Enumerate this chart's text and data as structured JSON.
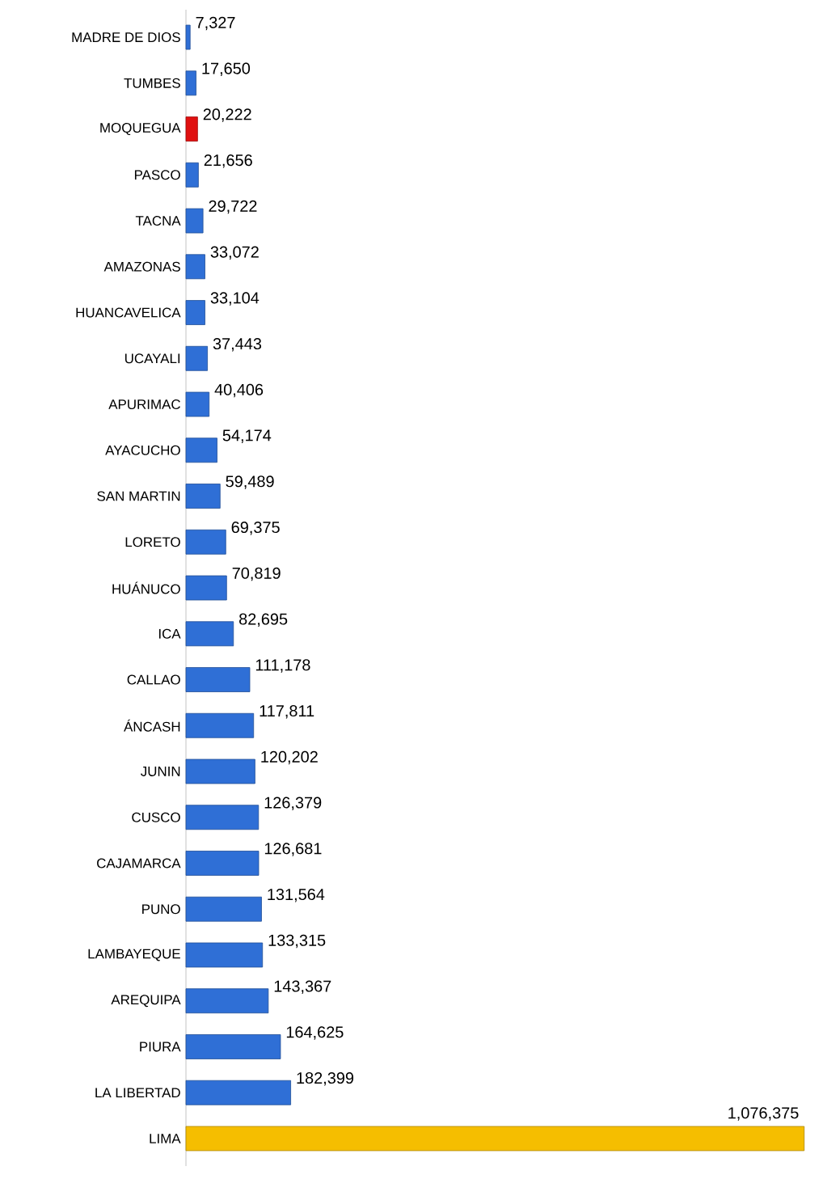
{
  "chart_data": {
    "type": "bar",
    "orientation": "horizontal",
    "categories": [
      "MADRE DE DIOS",
      "TUMBES",
      "MOQUEGUA",
      "PASCO",
      "TACNA",
      "AMAZONAS",
      "HUANCAVELICA",
      "UCAYALI",
      "APURIMAC",
      "AYACUCHO",
      "SAN MARTIN",
      "LORETO",
      "HUÁNUCO",
      "ICA",
      "CALLAO",
      "ÁNCASH",
      "JUNIN",
      "CUSCO",
      "CAJAMARCA",
      "PUNO",
      "LAMBAYEQUE",
      "AREQUIPA",
      "PIURA",
      "LA LIBERTAD",
      "LIMA"
    ],
    "values": [
      7327,
      17650,
      20222,
      21656,
      29722,
      33072,
      33104,
      37443,
      40406,
      54174,
      59489,
      69375,
      70819,
      82695,
      111178,
      117811,
      120202,
      126379,
      126681,
      131564,
      133315,
      143367,
      164625,
      182399,
      1076375
    ],
    "value_labels": [
      "7,327",
      "17,650",
      "20,222",
      "21,656",
      "29,722",
      "33,072",
      "33,104",
      "37,443",
      "40,406",
      "54,174",
      "59,489",
      "69,375",
      "70,819",
      "82,695",
      "111,178",
      "117,811",
      "120,202",
      "126,379",
      "126,681",
      "131,564",
      "133,315",
      "143,367",
      "164,625",
      "182,399",
      "1,076,375"
    ],
    "colors": [
      "#2f6fd6",
      "#2f6fd6",
      "#e01010",
      "#2f6fd6",
      "#2f6fd6",
      "#2f6fd6",
      "#2f6fd6",
      "#2f6fd6",
      "#2f6fd6",
      "#2f6fd6",
      "#2f6fd6",
      "#2f6fd6",
      "#2f6fd6",
      "#2f6fd6",
      "#2f6fd6",
      "#2f6fd6",
      "#2f6fd6",
      "#2f6fd6",
      "#2f6fd6",
      "#2f6fd6",
      "#2f6fd6",
      "#2f6fd6",
      "#2f6fd6",
      "#2f6fd6",
      "#f5be00"
    ]
  }
}
